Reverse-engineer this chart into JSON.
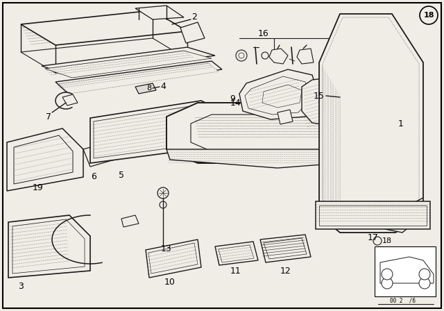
{
  "bg_color": "#f0ede6",
  "line_color": "#1a1a1a",
  "fig_width": 6.4,
  "fig_height": 4.48,
  "dpi": 100,
  "label_fs": 9,
  "border_lw": 1.5
}
